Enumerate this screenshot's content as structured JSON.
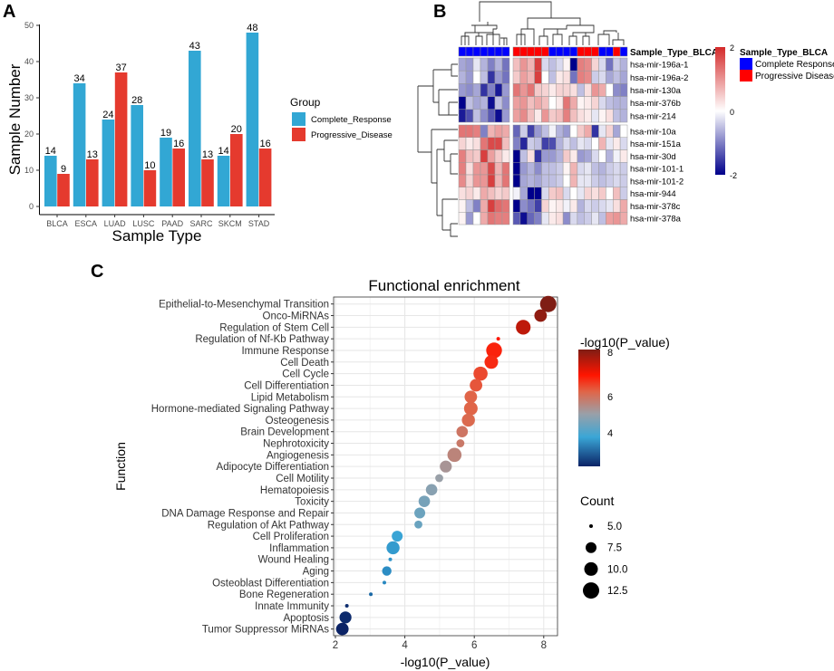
{
  "panels": {
    "a": "A",
    "b": "B",
    "c": "C"
  },
  "chart_data": [
    {
      "type": "bar",
      "title": "",
      "xlabel": "Sample Type",
      "ylabel": "Sample Number",
      "ylim": [
        0,
        50
      ],
      "yticks": [
        "0",
        "10",
        "20",
        "30",
        "40",
        "50"
      ],
      "categories": [
        "BLCA",
        "ESCA",
        "LUAD",
        "LUSC",
        "PAAD",
        "SARC",
        "SKCM",
        "STAD"
      ],
      "legend_title": "Group",
      "legend_position": "right",
      "series": [
        {
          "name": "Complete_Response",
          "color": "#32a7d4",
          "values": [
            14,
            34,
            24,
            28,
            19,
            43,
            14,
            48
          ]
        },
        {
          "name": "Progressive_Disease",
          "color": "#e53a2e",
          "values": [
            9,
            13,
            37,
            10,
            16,
            13,
            20,
            16
          ]
        }
      ]
    },
    {
      "type": "heatmap",
      "annotation_label": "Sample_Type_BLCA",
      "legend_title": "Sample_Type_BLCA",
      "legend": [
        {
          "name": "Complete Response",
          "color": "#0000ff"
        },
        {
          "name": "Progressive Disease",
          "color": "#ff0000"
        }
      ],
      "scale": {
        "min": -2,
        "max": 2,
        "ticks": [
          "2",
          "0",
          "-2"
        ],
        "low": "#00008b",
        "mid": "#ffffff",
        "high": "#d42a2a"
      },
      "column_groups": [
        [
          "CR",
          "CR",
          "CR",
          "CR",
          "CR",
          "CR",
          "CR"
        ],
        [
          "PD",
          "PD",
          "PD",
          "PD",
          "PD",
          "CR",
          "CR",
          "CR",
          "CR",
          "PD",
          "PD",
          "PD",
          "CR",
          "CR",
          "PD",
          "CR"
        ]
      ],
      "row_groups": [
        5,
        8
      ],
      "rows": [
        "hsa-mir-196a-1",
        "hsa-mir-196a-2",
        "hsa-mir-130a",
        "hsa-mir-376b",
        "hsa-mir-214",
        "hsa-mir-10a",
        "hsa-mir-151a",
        "hsa-mir-30d",
        "hsa-mir-101-1",
        "hsa-mir-101-2",
        "hsa-mir-944",
        "hsa-mir-378c",
        "hsa-mir-378a"
      ],
      "values": [
        [
          -0.7,
          -0.8,
          -0.2,
          -0.6,
          -1,
          -0.6,
          -1.1,
          0.6,
          1,
          0.7,
          1.8,
          -0.3,
          -0.5,
          -0.3,
          0.1,
          -2,
          1.2,
          1.1,
          0.4,
          -0.3,
          -1.1,
          -0.4,
          -0.6
        ],
        [
          -0.6,
          -0.8,
          0,
          -0.5,
          -1.6,
          -0.8,
          -1.1,
          0.5,
          0.9,
          0.7,
          1.8,
          0,
          -0.5,
          0.2,
          0.3,
          -1.1,
          1.2,
          1.1,
          -0.4,
          -0.3,
          -0.7,
          -0.5,
          -0.7
        ],
        [
          -0.8,
          -0.9,
          -0.7,
          -1.6,
          -1,
          -1.8,
          -0.8,
          1.3,
          1,
          1.3,
          0.5,
          0.4,
          0.2,
          0.4,
          0.4,
          0.3,
          -0.5,
          0.3,
          1,
          0.8,
          0,
          -0.9,
          -1
        ],
        [
          -2,
          -0.5,
          -0.7,
          -0.6,
          -1.9,
          -0.5,
          -0.9,
          0.9,
          1,
          0.6,
          0.8,
          0.6,
          0,
          0.2,
          1.3,
          0.8,
          0.1,
          0.2,
          0.4,
          -0.3,
          -0.5,
          -0.6,
          -0.6
        ],
        [
          -1.8,
          -1.4,
          -0.5,
          -0.9,
          -1.3,
          -1.9,
          -0.8,
          0.9,
          1.1,
          0.6,
          0.2,
          1,
          0.5,
          0.6,
          1.2,
          0.6,
          0.3,
          0.2,
          -0.2,
          0.1,
          0.3,
          -0.5,
          -0.6
        ],
        [
          1.3,
          1.3,
          1.2,
          -1,
          0.7,
          0.9,
          0.8,
          -1.2,
          -0.4,
          -1.5,
          -0.8,
          -0.5,
          -0.1,
          -0.6,
          -0.8,
          0,
          0.5,
          0.8,
          -1.6,
          -0.2,
          0.4,
          -0.7,
          0
        ],
        [
          0.4,
          0.2,
          0.3,
          1.3,
          1.7,
          1.7,
          0.6,
          -1,
          -1.7,
          -0.4,
          -0.5,
          -1.5,
          -1.4,
          -0.6,
          -0.3,
          -0.5,
          -0.2,
          -0.3,
          0,
          0.7,
          -0.2,
          0.2,
          -0.3
        ],
        [
          1.2,
          0.6,
          0.5,
          1.8,
          0.9,
          0.5,
          0.2,
          -2,
          -0.5,
          0.3,
          -1.6,
          -0.8,
          -0.8,
          -0.6,
          0.5,
          0.2,
          -0.8,
          -0.7,
          -0.3,
          0,
          -0.6,
          -0.1,
          0.2
        ],
        [
          1.2,
          0.3,
          1,
          1,
          1.7,
          0.7,
          1.3,
          -2,
          -0.8,
          -0.6,
          -0.9,
          -0.5,
          -0.5,
          -0.4,
          0.1,
          0.7,
          -0.3,
          -0.2,
          -0.5,
          -0.6,
          -0.4,
          -0.3,
          -0.4
        ],
        [
          1.1,
          0.4,
          1,
          1,
          1.8,
          0.7,
          1.3,
          -2,
          -0.7,
          -0.6,
          -0.7,
          -0.5,
          -0.5,
          -0.4,
          0,
          0.7,
          -0.2,
          -0.2,
          -0.4,
          -0.5,
          -0.4,
          -0.3,
          -0.4
        ],
        [
          0.3,
          0.4,
          0.2,
          0.8,
          0.6,
          0.4,
          0.5,
          -0.1,
          -0.7,
          -2,
          -2,
          -0.3,
          0.5,
          0.6,
          -0.3,
          0,
          -0.2,
          0.4,
          0.3,
          0.5,
          0,
          0.6,
          -0.4
        ],
        [
          0.1,
          -0.5,
          -1,
          0.8,
          1.8,
          1.4,
          1.3,
          -2,
          -0.9,
          -1.1,
          -1.5,
          0.4,
          0.1,
          0.2,
          -0.1,
          0.2,
          -0.6,
          -0.3,
          -0.4,
          -0.3,
          -0.2,
          0.3,
          0.8
        ],
        [
          0.1,
          -0.8,
          0,
          0.8,
          1.3,
          1.2,
          1.2,
          -1.3,
          -1.9,
          -1.2,
          -1,
          -0.2,
          0.2,
          0.3,
          -0.9,
          -0.3,
          -0.5,
          -0.4,
          -0.2,
          -0.5,
          0.9,
          1,
          0.8
        ]
      ]
    },
    {
      "type": "scatter",
      "title": "Functional enrichment",
      "xlabel": "-log10(P_value)",
      "ylabel": "Function",
      "xlim": [
        1.95,
        8.4
      ],
      "xticks": [
        "2",
        "4",
        "6",
        "8"
      ],
      "color_legend": {
        "title": "-log10(P_value)",
        "ticks": [
          "8",
          "6",
          "4"
        ]
      },
      "size_legend": {
        "title": "Count",
        "values": [
          "5.0",
          "7.5",
          "10.0",
          "12.5"
        ]
      },
      "points": [
        {
          "label": "Epithelial-to-Mesenchymal Transition",
          "x": 8.13,
          "count": 12.5
        },
        {
          "label": "Onco-MiRNAs",
          "x": 7.91,
          "count": 9
        },
        {
          "label": "Regulation of Stem Cell",
          "x": 7.41,
          "count": 11
        },
        {
          "label": "Regulation of Nf-Kb Pathway",
          "x": 6.69,
          "count": 5
        },
        {
          "label": "Immune Response",
          "x": 6.57,
          "count": 12
        },
        {
          "label": "Cell Death",
          "x": 6.49,
          "count": 10
        },
        {
          "label": "Cell Cycle",
          "x": 6.18,
          "count": 10.5
        },
        {
          "label": "Cell Differentiation",
          "x": 6.05,
          "count": 9
        },
        {
          "label": "Lipid Metabolism",
          "x": 5.9,
          "count": 9
        },
        {
          "label": "Hormone-mediated Signaling Pathway",
          "x": 5.9,
          "count": 10
        },
        {
          "label": "Osteogenesis",
          "x": 5.83,
          "count": 9.5
        },
        {
          "label": "Brain Development",
          "x": 5.65,
          "count": 8
        },
        {
          "label": "Nephrotoxicity",
          "x": 5.6,
          "count": 6.5
        },
        {
          "label": "Angiogenesis",
          "x": 5.43,
          "count": 10.5
        },
        {
          "label": "Adipocyte Differentiation",
          "x": 5.18,
          "count": 8.5
        },
        {
          "label": "Cell Motility",
          "x": 4.99,
          "count": 6.5
        },
        {
          "label": "Hematopoiesis",
          "x": 4.77,
          "count": 8
        },
        {
          "label": "Toxicity",
          "x": 4.56,
          "count": 8
        },
        {
          "label": "DNA Damage Response and Repair",
          "x": 4.43,
          "count": 7.5
        },
        {
          "label": "Regulation of Akt Pathway",
          "x": 4.39,
          "count": 6.5
        },
        {
          "label": "Cell Proliferation",
          "x": 3.78,
          "count": 7.5
        },
        {
          "label": "Inflammation",
          "x": 3.66,
          "count": 9.5
        },
        {
          "label": "Wound Healing",
          "x": 3.58,
          "count": 5
        },
        {
          "label": "Aging",
          "x": 3.48,
          "count": 7
        },
        {
          "label": "Osteoblast Differentiation",
          "x": 3.41,
          "count": 5
        },
        {
          "label": "Bone Regeneration",
          "x": 3.02,
          "count": 5
        },
        {
          "label": "Innate Immunity",
          "x": 2.33,
          "count": 5
        },
        {
          "label": "Apoptosis",
          "x": 2.29,
          "count": 8.5
        },
        {
          "label": "Tumor Suppressor MiRNAs",
          "x": 2.2,
          "count": 9
        }
      ]
    }
  ]
}
